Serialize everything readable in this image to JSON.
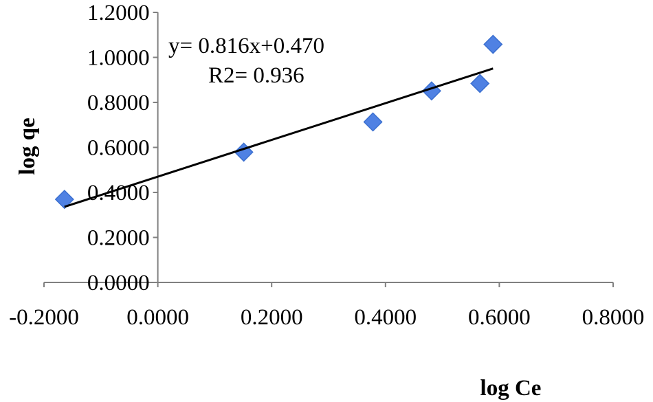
{
  "chart_data": {
    "type": "scatter",
    "title": "",
    "xlabel": "log Ce",
    "ylabel": "log qe",
    "xlim": [
      -0.2,
      0.8
    ],
    "ylim": [
      0.0,
      1.2
    ],
    "x_ticks": [
      -0.2,
      0.0,
      0.2,
      0.4,
      0.6,
      0.8
    ],
    "y_ticks": [
      0.0,
      0.2,
      0.4,
      0.6,
      0.8,
      1.0,
      1.2
    ],
    "x_tick_labels": [
      "-0.2000",
      "0.0000",
      "0.2000",
      "0.4000",
      "0.6000",
      "0.8000"
    ],
    "y_tick_labels": [
      "0.0000",
      "0.2000",
      "0.4000",
      "0.6000",
      "0.8000",
      "1.0000",
      "1.2000"
    ],
    "grid": false,
    "legend": "none",
    "marker": "diamond",
    "marker_color": "#4f81e3",
    "marker_edge_color": "#3a6fd0",
    "line_color": "#000000",
    "axis_color": "#808080",
    "points": [
      {
        "x": -0.164,
        "y": 0.369
      },
      {
        "x": 0.151,
        "y": 0.579
      },
      {
        "x": 0.378,
        "y": 0.713
      },
      {
        "x": 0.481,
        "y": 0.851
      },
      {
        "x": 0.566,
        "y": 0.884
      },
      {
        "x": 0.589,
        "y": 1.058
      }
    ],
    "trendline": {
      "slope": 0.816,
      "intercept": 0.47,
      "x_range": [
        -0.164,
        0.589
      ]
    },
    "annotations": {
      "equation": "y= 0.816x+0.470",
      "r2": "R2= 0.936"
    }
  }
}
